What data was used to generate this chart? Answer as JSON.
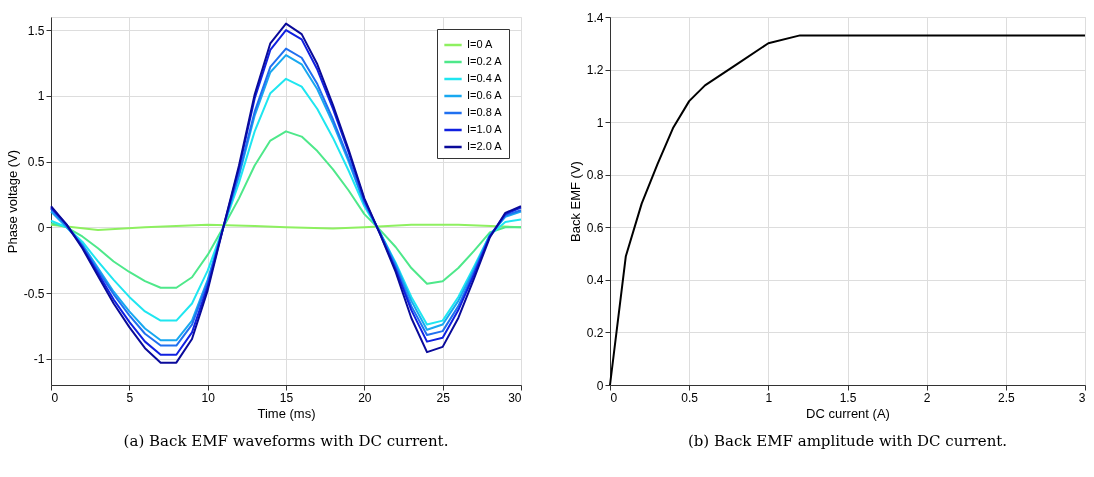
{
  "chart_data": [
    {
      "type": "line",
      "xlabel": "Time (ms)",
      "ylabel": "Phase voltage (V)",
      "xlim": [
        0,
        30
      ],
      "xticks": [
        0,
        5,
        10,
        15,
        20,
        25,
        30
      ],
      "ylim": [
        -1.2,
        1.6
      ],
      "yticks": [
        -1,
        -0.5,
        0,
        0.5,
        1,
        1.5
      ],
      "grid": true,
      "legend": "top right",
      "annotations": [
        "(a) Back EMF waveforms with DC current."
      ],
      "series": [
        {
          "name": "I=0 A",
          "color": "#8ef060",
          "x": [
            0,
            3,
            6,
            10,
            13,
            15,
            18,
            20,
            23,
            26,
            30
          ],
          "values": [
            0.02,
            -0.02,
            0,
            0.02,
            0.01,
            0,
            -0.01,
            0,
            0.02,
            0.02,
            0.0
          ]
        },
        {
          "name": "I=0.2 A",
          "color": "#4ee88a",
          "x": [
            0,
            1,
            2,
            3,
            4,
            5,
            6,
            7,
            8,
            9,
            10,
            11,
            12,
            13,
            14,
            15,
            16,
            17,
            18,
            19,
            20,
            21,
            22,
            23,
            24,
            25,
            26,
            27,
            28,
            29,
            30
          ],
          "values": [
            0.03,
            0,
            -0.07,
            -0.16,
            -0.26,
            -0.34,
            -0.41,
            -0.46,
            -0.46,
            -0.38,
            -0.21,
            0,
            0.22,
            0.47,
            0.66,
            0.73,
            0.69,
            0.58,
            0.44,
            0.28,
            0.1,
            -0.02,
            -0.15,
            -0.31,
            -0.43,
            -0.41,
            -0.31,
            -0.18,
            -0.04,
            0.0,
            0.0
          ]
        },
        {
          "name": "I=0.4 A",
          "color": "#1fe6f0",
          "x": [
            0,
            1,
            2,
            3,
            4,
            5,
            6,
            7,
            8,
            9,
            10,
            11,
            12,
            13,
            14,
            15,
            16,
            17,
            18,
            19,
            20,
            21,
            22,
            23,
            24,
            25,
            26,
            27,
            28,
            29,
            30
          ],
          "values": [
            0.05,
            0,
            -0.11,
            -0.26,
            -0.4,
            -0.53,
            -0.64,
            -0.71,
            -0.71,
            -0.58,
            -0.33,
            0,
            0.34,
            0.73,
            1.02,
            1.13,
            1.07,
            0.9,
            0.68,
            0.43,
            0.16,
            -0.04,
            -0.27,
            -0.53,
            -0.74,
            -0.71,
            -0.53,
            -0.3,
            -0.06,
            0.04,
            0.06
          ]
        },
        {
          "name": "I=0.6 A",
          "color": "#18a8f0",
          "x": [
            0,
            1,
            2,
            3,
            4,
            5,
            6,
            7,
            8,
            9,
            10,
            11,
            12,
            13,
            14,
            15,
            16,
            17,
            18,
            19,
            20,
            21,
            22,
            23,
            24,
            25,
            26,
            27,
            28,
            29,
            30
          ],
          "values": [
            0.12,
            0,
            -0.13,
            -0.31,
            -0.49,
            -0.64,
            -0.77,
            -0.86,
            -0.86,
            -0.71,
            -0.4,
            0,
            0.39,
            0.85,
            1.18,
            1.31,
            1.24,
            1.05,
            0.79,
            0.5,
            0.18,
            -0.04,
            -0.28,
            -0.56,
            -0.78,
            -0.74,
            -0.56,
            -0.32,
            -0.06,
            0.08,
            0.12
          ]
        },
        {
          "name": "I=0.8 A",
          "color": "#2070f0",
          "x": [
            0,
            1,
            2,
            3,
            4,
            5,
            6,
            7,
            8,
            9,
            10,
            11,
            12,
            13,
            14,
            15,
            16,
            17,
            18,
            19,
            20,
            21,
            22,
            23,
            24,
            25,
            26,
            27,
            28,
            29,
            30
          ],
          "values": [
            0.14,
            0.01,
            -0.14,
            -0.33,
            -0.51,
            -0.67,
            -0.81,
            -0.9,
            -0.9,
            -0.74,
            -0.42,
            0,
            0.41,
            0.88,
            1.22,
            1.36,
            1.29,
            1.09,
            0.82,
            0.52,
            0.19,
            -0.04,
            -0.3,
            -0.6,
            -0.82,
            -0.79,
            -0.6,
            -0.34,
            -0.07,
            0.09,
            0.13
          ]
        },
        {
          "name": "I=1.0 A",
          "color": "#1020e0",
          "x": [
            0,
            1,
            2,
            3,
            4,
            5,
            6,
            7,
            8,
            9,
            10,
            11,
            12,
            13,
            14,
            15,
            16,
            17,
            18,
            19,
            20,
            21,
            22,
            23,
            24,
            25,
            26,
            27,
            28,
            29,
            30
          ],
          "values": [
            0.15,
            0.02,
            -0.15,
            -0.35,
            -0.55,
            -0.72,
            -0.87,
            -0.97,
            -0.97,
            -0.8,
            -0.45,
            0,
            0.45,
            0.98,
            1.35,
            1.5,
            1.43,
            1.2,
            0.9,
            0.57,
            0.21,
            -0.05,
            -0.32,
            -0.63,
            -0.87,
            -0.84,
            -0.63,
            -0.36,
            -0.07,
            0.1,
            0.15
          ]
        },
        {
          "name": "I=2.0 A",
          "color": "#0a0a9a",
          "x": [
            0,
            1,
            2,
            3,
            4,
            5,
            6,
            7,
            8,
            9,
            10,
            11,
            12,
            13,
            14,
            15,
            16,
            17,
            18,
            19,
            20,
            21,
            22,
            23,
            24,
            25,
            26,
            27,
            28,
            29,
            30
          ],
          "values": [
            0.16,
            0.02,
            -0.16,
            -0.37,
            -0.58,
            -0.76,
            -0.92,
            -1.03,
            -1.03,
            -0.85,
            -0.48,
            0,
            0.47,
            1.01,
            1.4,
            1.55,
            1.47,
            1.24,
            0.93,
            0.59,
            0.22,
            -0.05,
            -0.34,
            -0.69,
            -0.95,
            -0.91,
            -0.69,
            -0.39,
            -0.08,
            0.11,
            0.16
          ]
        }
      ]
    },
    {
      "type": "line",
      "xlabel": "DC current (A)",
      "ylabel": "Back EMF (V)",
      "xlim": [
        0,
        3
      ],
      "xticks": [
        0,
        0.5,
        1,
        1.5,
        2,
        2.5,
        3
      ],
      "ylim": [
        0,
        1.4
      ],
      "yticks": [
        0,
        0.2,
        0.4,
        0.6,
        0.8,
        1,
        1.2,
        1.4
      ],
      "grid": true,
      "annotations": [
        "(b) Back EMF amplitude with DC current."
      ],
      "series": [
        {
          "color": "#000000",
          "x": [
            0,
            0.1,
            0.2,
            0.3,
            0.4,
            0.5,
            0.6,
            0.8,
            1.0,
            1.2,
            3
          ],
          "values": [
            0,
            0.49,
            0.69,
            0.84,
            0.98,
            1.08,
            1.14,
            1.22,
            1.3,
            1.33,
            1.33
          ]
        }
      ]
    }
  ]
}
